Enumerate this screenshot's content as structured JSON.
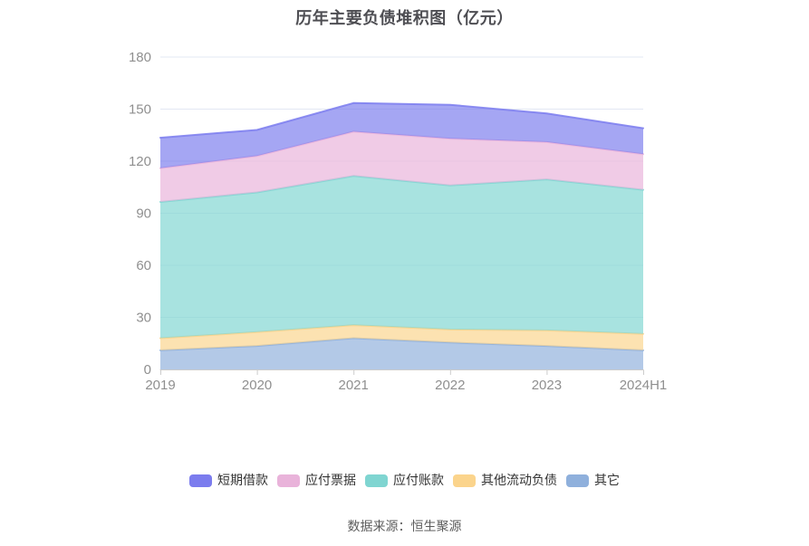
{
  "title": "历年主要负债堆积图（亿元）",
  "footer": "数据来源：恒生聚源",
  "chart_data": {
    "type": "area",
    "stacked": true,
    "title": "历年主要负债堆积图（亿元）",
    "xlabel": "",
    "ylabel": "",
    "categories": [
      "2019",
      "2020",
      "2021",
      "2022",
      "2023",
      "2024H1"
    ],
    "series": [
      {
        "name": "其它",
        "color": "#8fb0dc",
        "values": [
          11.0,
          13.5,
          18.0,
          15.5,
          13.5,
          11.0
        ]
      },
      {
        "name": "其他流动负债",
        "color": "#fbd48c",
        "values": [
          7.0,
          8.0,
          7.5,
          7.5,
          9.0,
          9.5
        ]
      },
      {
        "name": "应付账款",
        "color": "#7fd5d1",
        "values": [
          78.5,
          80.5,
          86.0,
          83.0,
          87.0,
          83.0
        ]
      },
      {
        "name": "应付票据",
        "color": "#e9b3da",
        "values": [
          19.5,
          21.0,
          25.5,
          27.0,
          21.5,
          20.5
        ]
      },
      {
        "name": "短期借款",
        "color": "#7b7cee",
        "values": [
          17.5,
          15.0,
          16.5,
          19.5,
          16.5,
          15.0
        ]
      }
    ],
    "totals": [
      133.5,
      138.0,
      153.5,
      152.5,
      147.5,
      139.0
    ],
    "ylim": [
      0,
      180
    ],
    "yticks": [
      0,
      30,
      60,
      90,
      120,
      150,
      180
    ],
    "grid": true,
    "fill_opacity": 0.68,
    "legend_position": "bottom",
    "legend_order": [
      "短期借款",
      "应付票据",
      "应付账款",
      "其他流动负债",
      "其它"
    ]
  }
}
